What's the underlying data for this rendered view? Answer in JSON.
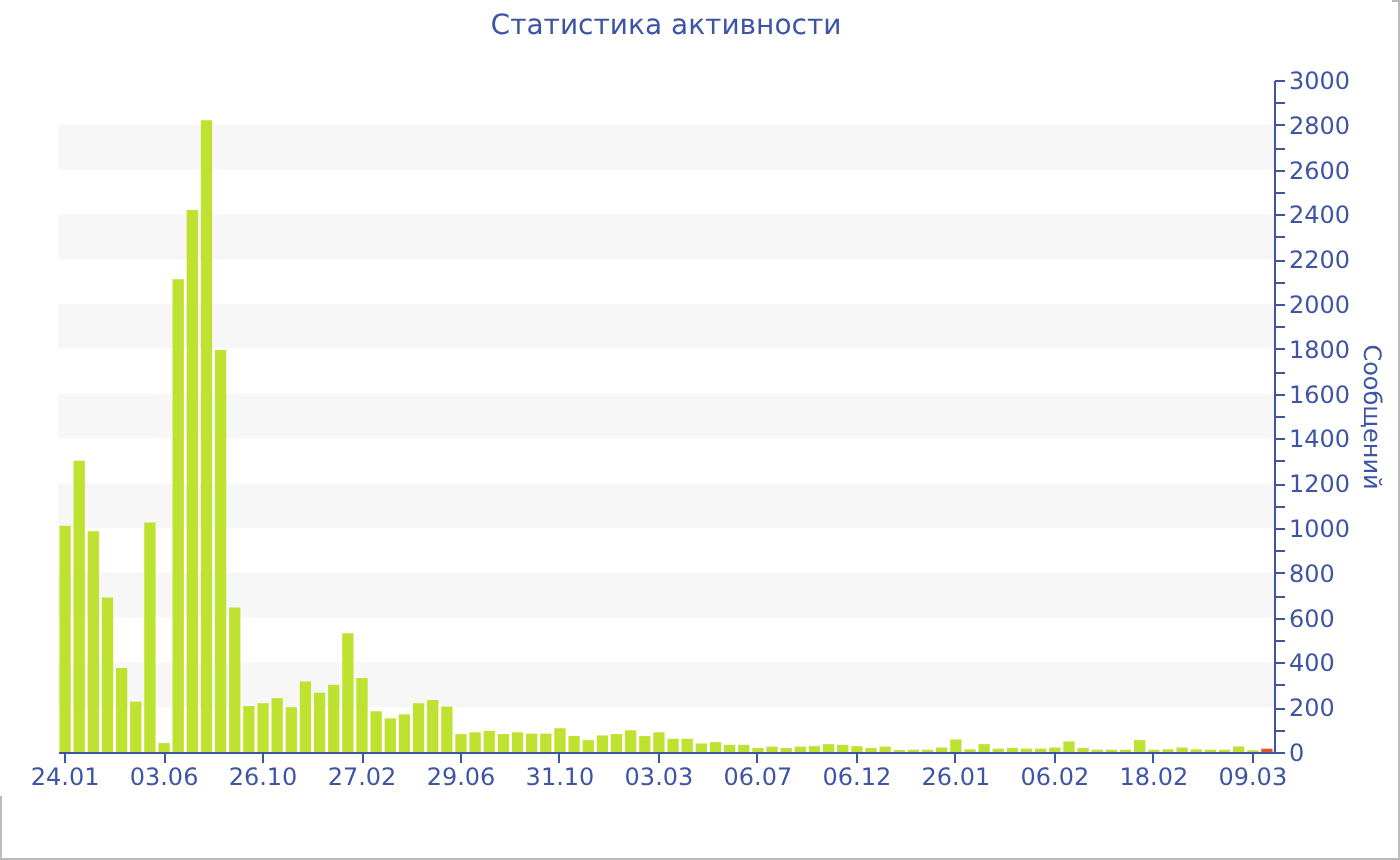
{
  "chart_data": {
    "type": "bar",
    "title": "Статистика активности",
    "ylabel": "Сообщений",
    "categories": [
      "24.01",
      null,
      null,
      null,
      null,
      null,
      null,
      "03.06",
      null,
      null,
      null,
      null,
      null,
      null,
      "26.10",
      null,
      null,
      null,
      null,
      null,
      null,
      "27.02",
      null,
      null,
      null,
      null,
      null,
      null,
      "29.06",
      null,
      null,
      null,
      null,
      null,
      null,
      "31.10",
      null,
      null,
      null,
      null,
      null,
      null,
      "03.03",
      null,
      null,
      null,
      null,
      null,
      null,
      "06.07",
      null,
      null,
      null,
      null,
      null,
      null,
      "06.12",
      null,
      null,
      null,
      null,
      null,
      null,
      "26.01",
      null,
      null,
      null,
      null,
      null,
      null,
      "06.02",
      null,
      null,
      null,
      null,
      null,
      null,
      "18.02",
      null,
      null,
      null,
      null,
      null,
      null,
      "09.03",
      null
    ],
    "values": [
      1010,
      1300,
      985,
      690,
      375,
      225,
      1025,
      40,
      2110,
      2420,
      2820,
      1795,
      645,
      205,
      218,
      240,
      200,
      315,
      265,
      300,
      530,
      330,
      182,
      150,
      168,
      218,
      232,
      203,
      80,
      88,
      94,
      80,
      88,
      82,
      82,
      106,
      71,
      53,
      74,
      80,
      97,
      71,
      88,
      59,
      59,
      38,
      44,
      32,
      32,
      18,
      24,
      18,
      24,
      26,
      35,
      32,
      26,
      18,
      24,
      9,
      10,
      10,
      20,
      56,
      12,
      35,
      15,
      18,
      15,
      15,
      20,
      47,
      18,
      10,
      10,
      10,
      53,
      10,
      12,
      20,
      12,
      10,
      10,
      25,
      8,
      15
    ],
    "colors": [
      "#bde230",
      "#bde230",
      "#bde230",
      "#bde230",
      "#bde230",
      "#bde230",
      "#bde230",
      "#bde230",
      "#bde230",
      "#bde230",
      "#bde230",
      "#bde230",
      "#bde230",
      "#bde230",
      "#bde230",
      "#bde230",
      "#bde230",
      "#bde230",
      "#bde230",
      "#bde230",
      "#bde230",
      "#bde230",
      "#bde230",
      "#bde230",
      "#bde230",
      "#bde230",
      "#bde230",
      "#bde230",
      "#bde230",
      "#bde230",
      "#bde230",
      "#bde230",
      "#bde230",
      "#bde230",
      "#bde230",
      "#bde230",
      "#bde230",
      "#bde230",
      "#bde230",
      "#bde230",
      "#bde230",
      "#bde230",
      "#bde230",
      "#bde230",
      "#bde230",
      "#bde230",
      "#bde230",
      "#bde230",
      "#bde230",
      "#bde230",
      "#bde230",
      "#bde230",
      "#bde230",
      "#bde230",
      "#bde230",
      "#bde230",
      "#bde230",
      "#bde230",
      "#bde230",
      "#bde230",
      "#bde230",
      "#bde230",
      "#bde230",
      "#bde230",
      "#bde230",
      "#bde230",
      "#bde230",
      "#bde230",
      "#bde230",
      "#bde230",
      "#bde230",
      "#bde230",
      "#bde230",
      "#bde230",
      "#bde230",
      "#bde230",
      "#bde230",
      "#bde230",
      "#bde230",
      "#bde230",
      "#bde230",
      "#bde230",
      "#bde230",
      "#bde230",
      "#bde230",
      "#e8542a"
    ],
    "ylim": [
      0,
      3000
    ],
    "yticks": [
      0,
      {
        "value": 100,
        "label": null
      },
      200,
      {
        "value": 300,
        "label": null
      },
      400,
      {
        "value": 500,
        "label": null
      },
      600,
      {
        "value": 700,
        "label": null
      },
      800,
      {
        "value": 900,
        "label": null
      },
      1000,
      {
        "value": 1100,
        "label": null
      },
      1200,
      {
        "value": 1300,
        "label": null
      },
      1400,
      {
        "value": 1500,
        "label": null
      },
      1600,
      {
        "value": 1700,
        "label": null
      },
      1800,
      {
        "value": 1900,
        "label": null
      },
      2000,
      {
        "value": 2100,
        "label": null
      },
      2200,
      {
        "value": 2300,
        "label": null
      },
      2400,
      {
        "value": 2500,
        "label": null
      },
      2600,
      {
        "value": 2700,
        "label": null
      },
      2800,
      {
        "value": 2900,
        "label": null
      },
      3000
    ],
    "bands": [
      {
        "axis": "y",
        "from": 200,
        "to": 400,
        "color": "#f7f7f7"
      },
      {
        "axis": "y",
        "from": 600,
        "to": 800,
        "color": "#f7f7f7"
      },
      {
        "axis": "y",
        "from": 1000,
        "to": 1200,
        "color": "#f7f7f7"
      },
      {
        "axis": "y",
        "from": 1400,
        "to": 1600,
        "color": "#f7f7f7"
      },
      {
        "axis": "y",
        "from": 1800,
        "to": 2000,
        "color": "#f7f7f7"
      },
      {
        "axis": "y",
        "from": 2200,
        "to": 2400,
        "color": "#f7f7f7"
      },
      {
        "axis": "y",
        "from": 2600,
        "to": 2800,
        "color": "#f7f7f7"
      }
    ]
  }
}
